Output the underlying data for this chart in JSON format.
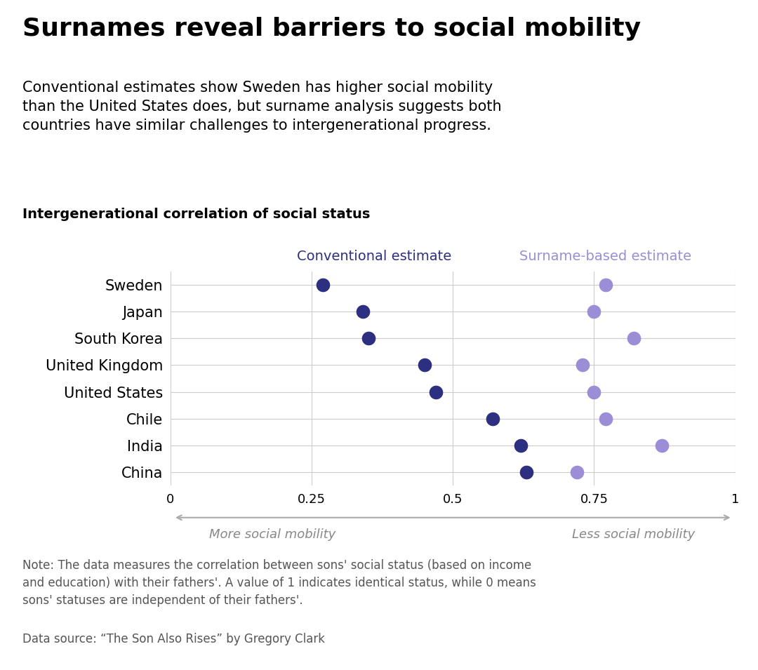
{
  "title": "Surnames reveal barriers to social mobility",
  "subtitle": "Conventional estimates show Sweden has higher social mobility\nthan the United States does, but surname analysis suggests both\ncountries have similar challenges to intergenerational progress.",
  "chart_label": "Intergenerational correlation of social status",
  "countries": [
    "Sweden",
    "Japan",
    "South Korea",
    "United Kingdom",
    "United States",
    "Chile",
    "India",
    "China"
  ],
  "conventional": [
    0.27,
    0.34,
    0.35,
    0.45,
    0.47,
    0.57,
    0.62,
    0.63
  ],
  "surname_based": [
    0.77,
    0.75,
    0.82,
    0.73,
    0.75,
    0.77,
    0.87,
    0.72
  ],
  "conventional_color": "#2d3080",
  "surname_color": "#9b8ed6",
  "conventional_label": "Conventional estimate",
  "surname_label": "Surname-based estimate",
  "xlim": [
    0,
    1
  ],
  "xticks": [
    0,
    0.25,
    0.5,
    0.75,
    1
  ],
  "xtick_labels": [
    "0",
    "0.25",
    "0.5",
    "0.75",
    "1"
  ],
  "arrow_text_left": "More social mobility",
  "arrow_text_right": "Less social mobility",
  "note": "Note: The data measures the correlation between sons' social status (based on income\nand education) with their fathers'. A value of 1 indicates identical status, while 0 means\nsons' statuses are independent of their fathers'.",
  "source": "Data source: “The Son Also Rises” by Gregory Clark",
  "grid_color": "#cccccc",
  "background_color": "#ffffff",
  "dot_size": 200,
  "title_fontsize": 26,
  "subtitle_fontsize": 15,
  "chart_label_fontsize": 14,
  "tick_fontsize": 13,
  "country_fontsize": 15,
  "legend_fontsize": 14,
  "note_fontsize": 12,
  "arrow_color": "#aaaaaa",
  "arrow_text_color": "#888888"
}
